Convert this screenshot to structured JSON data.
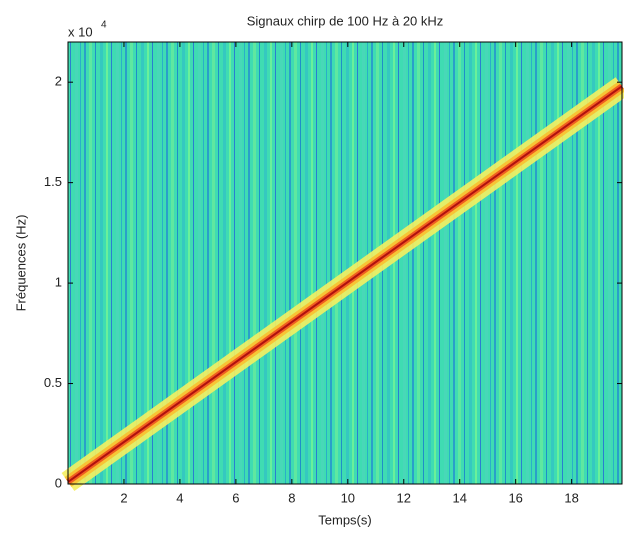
{
  "chart_data": {
    "type": "spectrogram",
    "title": "Signaux chirp de 100 Hz à 20 kHz",
    "xlabel": "Temps(s)",
    "ylabel": "Fréquences (Hz)",
    "y_scale_label": "x 10",
    "y_scale_exponent": "4",
    "xlim": [
      0,
      19.8
    ],
    "xticks": [
      2,
      4,
      6,
      8,
      10,
      12,
      14,
      16,
      18
    ],
    "ylim": [
      0,
      2.2
    ],
    "yticks": [
      0,
      0.5,
      1,
      1.5,
      2
    ],
    "grid": false,
    "series": [
      {
        "color": "#b01010",
        "x": [
          0,
          19.8
        ],
        "values": [
          0.01,
          1.98
        ]
      }
    ]
  }
}
